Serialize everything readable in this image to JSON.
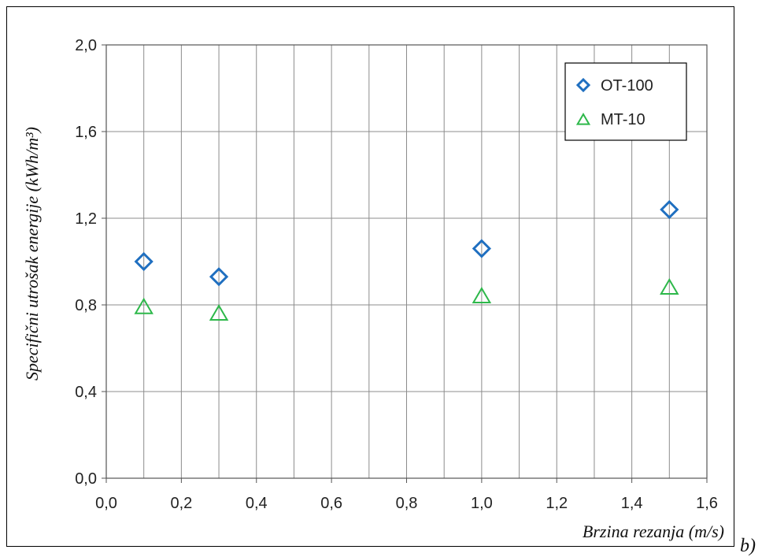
{
  "panel_label": "b)",
  "chart_data": {
    "type": "scatter",
    "xlabel": "Brzina rezanja (m/s)",
    "ylabel": "Specifični utrošak energije (kWh/m³)",
    "xlim": [
      0.0,
      1.6
    ],
    "ylim": [
      0.0,
      2.0
    ],
    "x_ticks": [
      "0,0",
      "0,2",
      "0,4",
      "0,6",
      "0,8",
      "1,0",
      "1,2",
      "1,4",
      "1,6"
    ],
    "y_ticks": [
      "0,0",
      "0,4",
      "0,8",
      "1,2",
      "1,6",
      "2,0"
    ],
    "grid": true,
    "legend_position": "top-right",
    "series": [
      {
        "name": "OT-100",
        "marker": "diamond",
        "color": "#1f6fc0",
        "points": [
          [
            0.1,
            1.0
          ],
          [
            0.3,
            0.93
          ],
          [
            1.0,
            1.06
          ],
          [
            1.5,
            1.24
          ]
        ]
      },
      {
        "name": "MT-10",
        "marker": "triangle",
        "color": "#2db84a",
        "points": [
          [
            0.1,
            0.79
          ],
          [
            0.3,
            0.76
          ],
          [
            1.0,
            0.84
          ],
          [
            1.5,
            0.88
          ]
        ]
      }
    ]
  }
}
